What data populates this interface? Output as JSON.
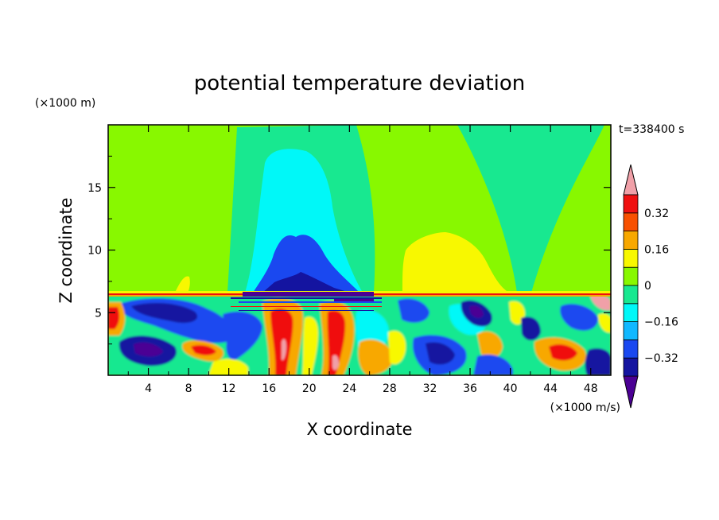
{
  "chart_data": {
    "type": "heatmap",
    "title": "potential temperature deviation",
    "xlabel": "X coordinate",
    "ylabel": "Z coordinate",
    "x_unit": "(×1000 m/s)",
    "y_unit": "(×1000 m)",
    "time_label": "t=338400 s",
    "xlim": [
      0,
      50
    ],
    "ylim": [
      0,
      20
    ],
    "x_ticks": [
      4,
      8,
      12,
      16,
      20,
      24,
      28,
      32,
      36,
      40,
      44,
      48
    ],
    "y_ticks": [
      5,
      10,
      15
    ],
    "grid": false,
    "legend": "right",
    "colorbar": {
      "labels": [
        "0.32",
        "0.16",
        "0",
        "−0.16",
        "−0.32"
      ],
      "label_values": [
        0.32,
        0.16,
        0,
        -0.16,
        -0.32
      ],
      "levels": [
        -0.4,
        -0.32,
        -0.24,
        -0.16,
        -0.08,
        0,
        0.08,
        0.16,
        0.24,
        0.32,
        0.4
      ],
      "colors": [
        "#4b0094",
        "#1414a0",
        "#1a48f0",
        "#10b8ff",
        "#00f8f8",
        "#18e890",
        "#88f800",
        "#f8f800",
        "#f8a800",
        "#f85000",
        "#f01010",
        "#f0a0a8"
      ]
    },
    "colors": {
      "background_upper": "#88f800",
      "tropopause_band": "#f01010"
    }
  }
}
